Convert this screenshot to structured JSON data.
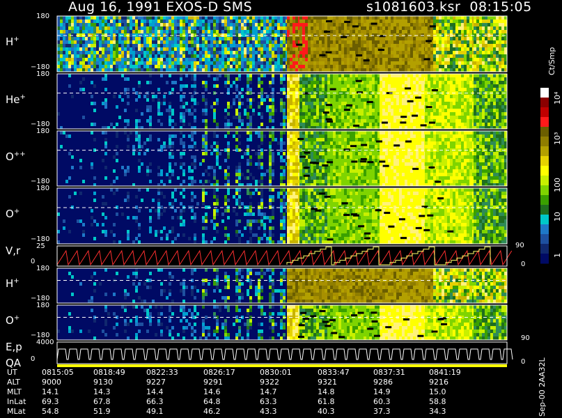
{
  "header": {
    "title": "Aug 16, 1991    EXOS-D SMS",
    "file": "s1081603.ksr",
    "time": "08:15:05"
  },
  "panels": [
    {
      "id": "h1",
      "label_main": "H",
      "label_sup": "+",
      "tick_top": "180",
      "tick_bot": "−180"
    },
    {
      "id": "he",
      "label_main": "He",
      "label_sup": "+",
      "tick_top": "180",
      "tick_bot": "−180"
    },
    {
      "id": "opp",
      "label_main": "O",
      "label_sup": "++",
      "tick_top": "180",
      "tick_bot": "−180"
    },
    {
      "id": "o1",
      "label_main": "O",
      "label_sup": "+",
      "tick_top": "180",
      "tick_bot": "−180"
    },
    {
      "id": "vr",
      "label_main": "V,r",
      "label_sup": "",
      "tick_top": "25",
      "tick_bot": "0",
      "right_top": "90",
      "right_bot": "0"
    },
    {
      "id": "h2",
      "label_main": "H",
      "label_sup": "+",
      "tick_top": "180",
      "tick_bot": "−180"
    },
    {
      "id": "o2",
      "label_main": "O",
      "label_sup": "+",
      "tick_top": "180",
      "tick_bot": "−180",
      "right_bot": "90"
    },
    {
      "id": "ep",
      "label_main": "E,p",
      "label_sup": "",
      "tick_top": "4000",
      "tick_bot": "0",
      "right_bot": "0"
    }
  ],
  "qa_label": "QA",
  "colorbar": {
    "unit": "Ct/Smp",
    "ticks": [
      "10⁴",
      "10³",
      "100",
      "10",
      "1"
    ],
    "colors": [
      "#ffffff",
      "#8b0000",
      "#c00000",
      "#ff1a1a",
      "#6b5e00",
      "#8f7d00",
      "#b3a000",
      "#e6d200",
      "#ffff00",
      "#c8f000",
      "#7fd400",
      "#3aa000",
      "#1f6e1f",
      "#00c8c8",
      "#1e78c8",
      "#1e50a0",
      "#10286e",
      "#000a64"
    ]
  },
  "side_note": "Sep-00  2AA32L",
  "footer": {
    "rows": [
      {
        "label": "UT",
        "values": [
          "0815:05",
          "0818:49",
          "0822:33",
          "0826:17",
          "0830:01",
          "0833:47",
          "0837:31",
          "0841:19"
        ]
      },
      {
        "label": "ALT",
        "values": [
          "9000",
          "9130",
          "9227",
          "9291",
          "9322",
          "9321",
          "9286",
          "9216"
        ]
      },
      {
        "label": "MLT",
        "values": [
          "14.1",
          "14.3",
          "14.4",
          "14.6",
          "14.7",
          "14.8",
          "14.9",
          "15.0"
        ]
      },
      {
        "label": "InLat",
        "values": [
          "69.3",
          "67.8",
          "66.3",
          "64.8",
          "63.3",
          "61.8",
          "60.3",
          "58.8"
        ]
      },
      {
        "label": "MLat",
        "values": [
          "54.8",
          "51.9",
          "49.1",
          "46.2",
          "43.3",
          "40.3",
          "37.3",
          "34.3"
        ]
      }
    ]
  },
  "chart_data": {
    "type": "heatmap",
    "x_labels": [
      "0815:05",
      "0818:49",
      "0822:33",
      "0826:17",
      "0830:01",
      "0833:47",
      "0837:31",
      "0841:19"
    ],
    "panels": [
      "H+",
      "He+",
      "O++",
      "O+",
      "V,r",
      "H+",
      "O+",
      "E,p"
    ],
    "y_range_angle": [
      -180,
      180
    ],
    "vr_left_range": [
      0,
      25
    ],
    "vr_right_range": [
      0,
      90
    ],
    "ep_left_range": [
      0,
      4000
    ],
    "color_scale": "log",
    "color_range": [
      1,
      10000
    ],
    "color_unit": "Ct/Smp"
  }
}
